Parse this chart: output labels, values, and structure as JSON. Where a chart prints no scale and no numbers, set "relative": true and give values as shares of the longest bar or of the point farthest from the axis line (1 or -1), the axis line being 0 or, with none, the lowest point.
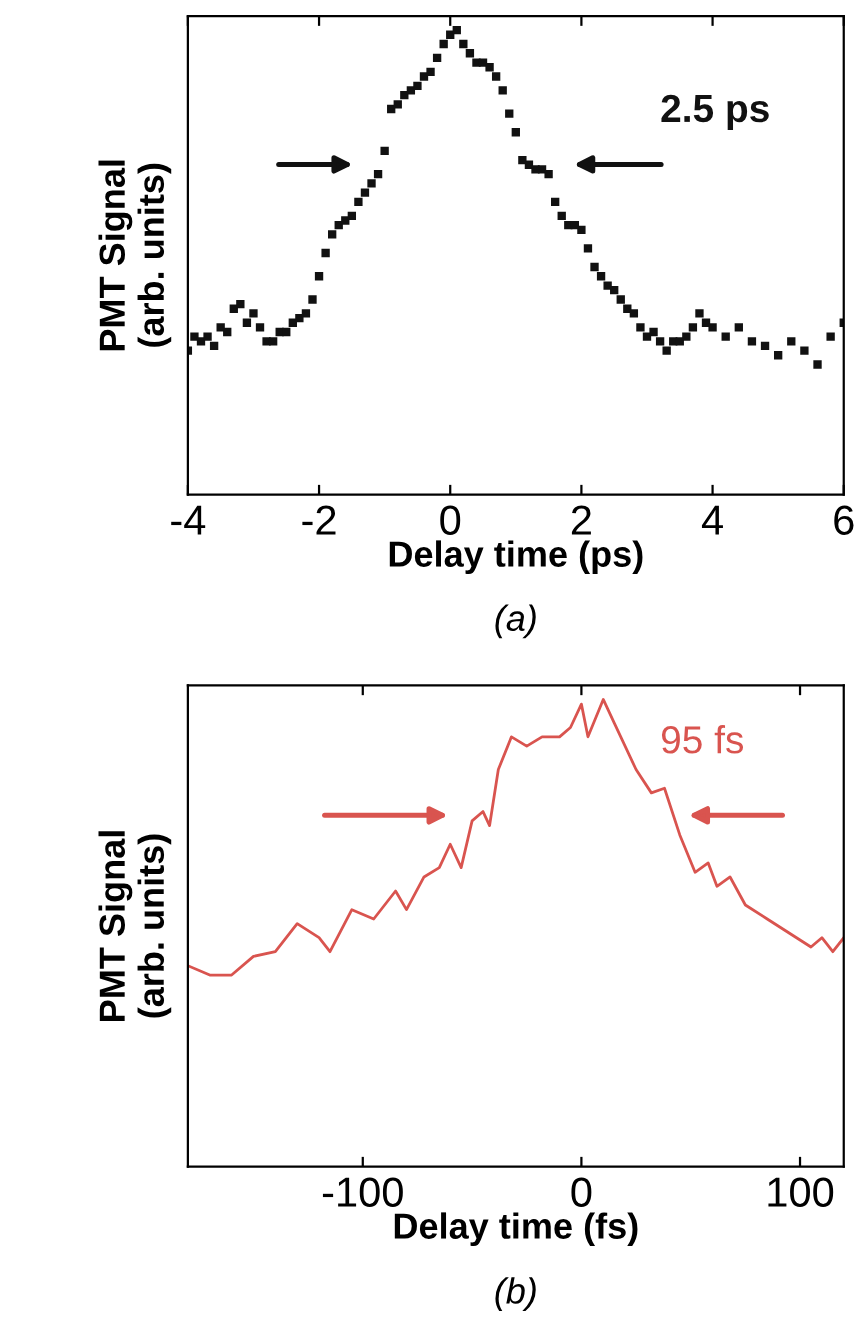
{
  "chart_data": [
    {
      "type": "scatter",
      "relative": true,
      "xlabel": "Delay time (ps)",
      "ylabel": "PMT Signal\n(arb. units)",
      "xlim": [
        -4,
        6
      ],
      "xticks": [
        -4,
        -2,
        0,
        2,
        4,
        6
      ],
      "marker": "square",
      "grid": false,
      "legend": false,
      "annotations": [
        "2.5 ps",
        "(a)"
      ],
      "series": [
        {
          "color": "#111111",
          "x": [
            -4,
            -3.9,
            -3.8,
            -3.7,
            -3.6,
            -3.5,
            -3.4,
            -3.3,
            -3.2,
            -3.1,
            -3,
            -2.9,
            -2.8,
            -2.7,
            -2.6,
            -2.5,
            -2.4,
            -2.3,
            -2.2,
            -2.1,
            -2,
            -1.9,
            -1.8,
            -1.7,
            -1.6,
            -1.5,
            -1.4,
            -1.3,
            -1.2,
            -1.1,
            -1,
            -0.9,
            -0.8,
            -0.7,
            -0.6,
            -0.5,
            -0.4,
            -0.3,
            -0.2,
            -0.1,
            0,
            0.1,
            0.2,
            0.3,
            0.4,
            0.5,
            0.6,
            0.7,
            0.8,
            0.9,
            1,
            1.1,
            1.2,
            1.3,
            1.4,
            1.5,
            1.6,
            1.7,
            1.8,
            1.9,
            2,
            2.1,
            2.2,
            2.3,
            2.4,
            2.5,
            2.6,
            2.7,
            2.8,
            2.9,
            3,
            3.1,
            3.2,
            3.3,
            3.4,
            3.5,
            3.6,
            3.7,
            3.8,
            3.9,
            4,
            4.2,
            4.4,
            4.6,
            4.8,
            5,
            5.2,
            5.4,
            5.6,
            5.8,
            6
          ],
          "values": [
            0.31,
            0.34,
            0.33,
            0.34,
            0.32,
            0.36,
            0.35,
            0.4,
            0.41,
            0.37,
            0.39,
            0.36,
            0.33,
            0.33,
            0.35,
            0.35,
            0.37,
            0.38,
            0.39,
            0.42,
            0.47,
            0.52,
            0.56,
            0.58,
            0.59,
            0.6,
            0.63,
            0.65,
            0.67,
            0.69,
            0.74,
            0.83,
            0.84,
            0.86,
            0.87,
            0.88,
            0.9,
            0.91,
            0.94,
            0.97,
            0.99,
            1.0,
            0.97,
            0.95,
            0.93,
            0.93,
            0.92,
            0.9,
            0.87,
            0.82,
            0.78,
            0.72,
            0.71,
            0.7,
            0.7,
            0.69,
            0.63,
            0.6,
            0.58,
            0.58,
            0.57,
            0.53,
            0.49,
            0.47,
            0.45,
            0.44,
            0.42,
            0.4,
            0.39,
            0.36,
            0.34,
            0.35,
            0.33,
            0.31,
            0.33,
            0.33,
            0.34,
            0.36,
            0.39,
            0.37,
            0.36,
            0.34,
            0.36,
            0.33,
            0.32,
            0.3,
            0.33,
            0.31,
            0.28,
            0.34,
            0.37
          ]
        }
      ]
    },
    {
      "type": "line",
      "relative": true,
      "xlabel": "Delay time (fs)",
      "ylabel": "PMT Signal\n(arb. units)",
      "xlim": [
        -180,
        120
      ],
      "xticks": [
        -100,
        0,
        100
      ],
      "marker": "none",
      "line_style": "solid",
      "grid": false,
      "legend": false,
      "annotations": [
        "95 fs",
        "(b)"
      ],
      "series": [
        {
          "color": "#d9544f",
          "x": [
            -180,
            -170,
            -160,
            -150,
            -140,
            -130,
            -120,
            -115,
            -105,
            -95,
            -85,
            -80,
            -72,
            -65,
            -60,
            -55,
            -50,
            -45,
            -42,
            -38,
            -32,
            -25,
            -18,
            -10,
            -5,
            0,
            3,
            10,
            15,
            25,
            32,
            38,
            45,
            52,
            58,
            62,
            68,
            75,
            85,
            95,
            105,
            110,
            115,
            120
          ],
          "values": [
            0.43,
            0.41,
            0.41,
            0.45,
            0.46,
            0.52,
            0.49,
            0.46,
            0.55,
            0.53,
            0.59,
            0.55,
            0.62,
            0.64,
            0.69,
            0.64,
            0.74,
            0.76,
            0.73,
            0.85,
            0.92,
            0.9,
            0.92,
            0.92,
            0.94,
            0.99,
            0.92,
            1.0,
            0.95,
            0.85,
            0.8,
            0.81,
            0.71,
            0.63,
            0.65,
            0.6,
            0.62,
            0.56,
            0.53,
            0.5,
            0.47,
            0.49,
            0.46,
            0.49
          ]
        }
      ]
    }
  ]
}
